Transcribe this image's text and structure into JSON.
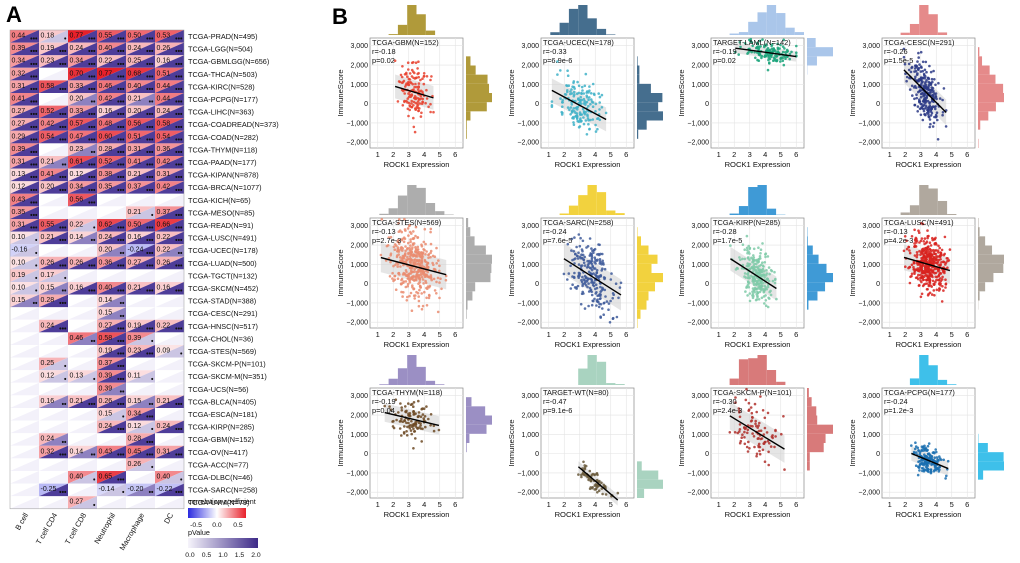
{
  "panel_a": {
    "label": "A",
    "columns": [
      "B cell",
      "T cell CD4",
      "T cell CD8",
      "Neutrophil",
      "Macrophage",
      "DC"
    ],
    "rows": [
      {
        "name": "TCGA-PRAD(N=495)",
        "r": [
          0.44,
          0.18,
          0.77,
          0.55,
          0.5,
          0.53
        ],
        "s": [
          3,
          1,
          3,
          3,
          3,
          3
        ]
      },
      {
        "name": "TCGA-LGG(N=504)",
        "r": [
          0.39,
          0.19,
          0.24,
          0.4,
          0.24,
          0.26
        ],
        "s": [
          3,
          3,
          3,
          3,
          3,
          3
        ]
      },
      {
        "name": "TCGA-GBMLGG(N=656)",
        "r": [
          0.34,
          0.23,
          0.34,
          0.22,
          0.25,
          0.16
        ],
        "s": [
          3,
          3,
          3,
          3,
          3,
          3
        ]
      },
      {
        "name": "TCGA-THCA(N=503)",
        "r": [
          0.32,
          null,
          0.7,
          0.77,
          0.68,
          0.51
        ],
        "s": [
          3,
          0,
          3,
          3,
          3,
          3
        ]
      },
      {
        "name": "TCGA-KIRC(N=528)",
        "r": [
          0.31,
          0.58,
          0.33,
          0.46,
          0.4,
          0.44
        ],
        "s": [
          3,
          3,
          3,
          3,
          3,
          3
        ]
      },
      {
        "name": "TCGA-PCPG(N=177)",
        "r": [
          0.41,
          null,
          0.2,
          0.42,
          0.21,
          0.44
        ],
        "s": [
          3,
          0,
          2,
          3,
          2,
          3
        ]
      },
      {
        "name": "TCGA-LIHC(N=363)",
        "r": [
          0.27,
          0.52,
          0.33,
          0.16,
          0.2,
          0.24
        ],
        "s": [
          3,
          3,
          3,
          3,
          3,
          3
        ]
      },
      {
        "name": "TCGA-COADREAD(N=373)",
        "r": [
          0.27,
          0.42,
          0.57,
          0.48,
          0.56,
          0.58
        ],
        "s": [
          3,
          3,
          3,
          3,
          3,
          3
        ]
      },
      {
        "name": "TCGA-COAD(N=282)",
        "r": [
          0.29,
          0.54,
          0.47,
          0.6,
          0.51,
          0.54
        ],
        "s": [
          3,
          3,
          3,
          3,
          3,
          3
        ]
      },
      {
        "name": "TCGA-THYM(N=118)",
        "r": [
          0.39,
          null,
          0.23,
          0.28,
          0.31,
          0.36
        ],
        "s": [
          3,
          0,
          2,
          3,
          3,
          3
        ]
      },
      {
        "name": "TCGA-PAAD(N=177)",
        "r": [
          0.31,
          0.21,
          0.61,
          0.52,
          0.41,
          0.42
        ],
        "s": [
          3,
          2,
          3,
          3,
          3,
          3
        ]
      },
      {
        "name": "TCGA-KIPAN(N=878)",
        "r": [
          0.13,
          0.41,
          0.12,
          0.38,
          0.21,
          0.31
        ],
        "s": [
          3,
          3,
          3,
          3,
          3,
          3
        ]
      },
      {
        "name": "TCGA-BRCA(N=1077)",
        "r": [
          0.12,
          0.2,
          0.34,
          0.35,
          0.37,
          0.42
        ],
        "s": [
          3,
          3,
          3,
          3,
          3,
          3
        ]
      },
      {
        "name": "TCGA-KICH(N=65)",
        "r": [
          0.43,
          null,
          0.56,
          null,
          null,
          null
        ],
        "s": [
          3,
          0,
          3,
          0,
          0,
          0
        ]
      },
      {
        "name": "TCGA-MESO(N=85)",
        "r": [
          0.35,
          null,
          null,
          null,
          0.21,
          0.37
        ],
        "s": [
          3,
          0,
          0,
          0,
          1,
          3
        ]
      },
      {
        "name": "TCGA-READ(N=91)",
        "r": [
          0.31,
          0.55,
          0.22,
          0.62,
          0.5,
          0.66
        ],
        "s": [
          3,
          3,
          1,
          3,
          3,
          3
        ]
      },
      {
        "name": "TCGA-LUSC(N=491)",
        "r": [
          0.1,
          0.21,
          0.14,
          0.24,
          0.16,
          0.22
        ],
        "s": [
          1,
          3,
          2,
          3,
          3,
          3
        ]
      },
      {
        "name": "TCGA-UCEC(N=178)",
        "r": [
          -0.16,
          null,
          null,
          0.2,
          -0.24,
          0.22
        ],
        "s": [
          1,
          0,
          0,
          2,
          3,
          2
        ]
      },
      {
        "name": "TCGA-LUAD(N=500)",
        "r": [
          0.1,
          0.26,
          0.26,
          0.36,
          0.27,
          0.26
        ],
        "s": [
          1,
          3,
          3,
          3,
          3,
          3
        ]
      },
      {
        "name": "TCGA-TGCT(N=132)",
        "r": [
          0.19,
          0.17,
          null,
          null,
          null,
          null
        ],
        "s": [
          1,
          1,
          0,
          0,
          0,
          0
        ]
      },
      {
        "name": "TCGA-SKCM(N=452)",
        "r": [
          0.1,
          0.15,
          0.16,
          0.4,
          0.21,
          0.16
        ],
        "s": [
          1,
          2,
          3,
          3,
          3,
          3
        ]
      },
      {
        "name": "TCGA-STAD(N=388)",
        "r": [
          0.15,
          0.28,
          null,
          0.14,
          null,
          null
        ],
        "s": [
          2,
          3,
          0,
          2,
          0,
          0
        ]
      },
      {
        "name": "TCGA-CESC(N=291)",
        "r": [
          null,
          null,
          null,
          0.15,
          null,
          null
        ],
        "s": [
          0,
          0,
          0,
          2,
          0,
          0
        ]
      },
      {
        "name": "TCGA-HNSC(N=517)",
        "r": [
          null,
          0.24,
          null,
          0.27,
          0.19,
          0.22
        ],
        "s": [
          0,
          3,
          0,
          3,
          3,
          3
        ]
      },
      {
        "name": "TCGA-CHOL(N=36)",
        "r": [
          null,
          null,
          0.46,
          0.58,
          0.39,
          null
        ],
        "s": [
          0,
          0,
          2,
          3,
          1,
          0
        ]
      },
      {
        "name": "TCGA-STES(N=569)",
        "r": [
          null,
          null,
          null,
          0.19,
          0.23,
          0.09
        ],
        "s": [
          0,
          0,
          0,
          3,
          3,
          1
        ]
      },
      {
        "name": "TCGA-SKCM-P(N=101)",
        "r": [
          null,
          0.25,
          null,
          0.37,
          null,
          null
        ],
        "s": [
          0,
          1,
          0,
          3,
          0,
          0
        ]
      },
      {
        "name": "TCGA-SKCM-M(N=351)",
        "r": [
          null,
          0.12,
          0.13,
          0.39,
          0.11,
          null
        ],
        "s": [
          0,
          1,
          1,
          3,
          1,
          0
        ]
      },
      {
        "name": "TCGA-UCS(N=56)",
        "r": [
          null,
          null,
          null,
          0.39,
          null,
          null
        ],
        "s": [
          0,
          0,
          0,
          2,
          0,
          0
        ]
      },
      {
        "name": "TCGA-BLCA(N=405)",
        "r": [
          null,
          0.16,
          0.21,
          0.26,
          0.15,
          0.21
        ],
        "s": [
          0,
          2,
          3,
          3,
          2,
          3
        ]
      },
      {
        "name": "TCGA-ESCA(N=181)",
        "r": [
          null,
          null,
          null,
          0.15,
          0.34,
          null
        ],
        "s": [
          0,
          0,
          0,
          1,
          3,
          0
        ]
      },
      {
        "name": "TCGA-KIRP(N=285)",
        "r": [
          null,
          null,
          null,
          0.24,
          0.12,
          0.24
        ],
        "s": [
          0,
          0,
          0,
          3,
          1,
          3
        ]
      },
      {
        "name": "TCGA-GBM(N=152)",
        "r": [
          null,
          0.24,
          null,
          null,
          0.28,
          null
        ],
        "s": [
          0,
          2,
          0,
          0,
          3,
          0
        ]
      },
      {
        "name": "TCGA-OV(N=417)",
        "r": [
          null,
          0.32,
          0.14,
          0.43,
          0.45,
          0.31
        ],
        "s": [
          0,
          3,
          2,
          3,
          3,
          3
        ]
      },
      {
        "name": "TCGA-ACC(N=77)",
        "r": [
          null,
          null,
          null,
          null,
          0.26,
          null
        ],
        "s": [
          0,
          0,
          0,
          0,
          1,
          0
        ]
      },
      {
        "name": "TCGA-DLBC(N=46)",
        "r": [
          null,
          null,
          0.4,
          0.65,
          null,
          0.4
        ],
        "s": [
          0,
          0,
          1,
          3,
          0,
          1
        ]
      },
      {
        "name": "TCGA-SARC(N=258)",
        "r": [
          null,
          -0.25,
          null,
          -0.14,
          -0.2,
          -0.22
        ],
        "s": [
          0,
          3,
          0,
          1,
          2,
          3
        ]
      },
      {
        "name": "TCGA-UVM(N=79)",
        "r": [
          null,
          null,
          0.27,
          null,
          null,
          null
        ],
        "s": [
          0,
          0,
          1,
          0,
          0,
          0
        ]
      }
    ],
    "legend": {
      "corr_title": "correlation coefficient",
      "corr_ticks": [
        "-0.5",
        "0.0",
        "0.5"
      ],
      "p_title": "pValue",
      "p_ticks": [
        "0.0",
        "0.5",
        "1.0",
        "1.5",
        "2.0"
      ]
    }
  },
  "chart_data": {
    "type": "scatter",
    "panel_label": "B",
    "xlabel": "ROCK1 Expression",
    "ylabel": "ImmuneScore",
    "xlim": [
      0.5,
      6.5
    ],
    "ylim": [
      -2300,
      3400
    ],
    "x_ticks": [
      "1",
      "2",
      "3",
      "4",
      "5",
      "6"
    ],
    "y_ticks": [
      "3,000",
      "2,000",
      "1,000",
      "0",
      "−1,000",
      "−2,000"
    ],
    "y_tick_values": [
      3000,
      2000,
      1000,
      0,
      -1000,
      -2000
    ],
    "series": [
      {
        "name": "TCGA-GBM(N=152)",
        "r": "r=-0.18",
        "p": "p=0.02",
        "color": "#e8412e",
        "marg": "#b09a3a",
        "n": 150,
        "xc": 3.4,
        "xs": 0.55,
        "int": 1400,
        "slope": -240,
        "noise": 650
      },
      {
        "name": "TCGA-UCEC(N=178)",
        "r": "r=-0.33",
        "p": "p=6.9e-6",
        "color": "#3fb2c8",
        "marg": "#456e8e",
        "n": 170,
        "xc": 3.0,
        "xs": 0.65,
        "int": 1200,
        "slope": -430,
        "noise": 650
      },
      {
        "name": "TARGET-LAML(N=142)",
        "r": "r=-0.19",
        "p": "p=0.02",
        "color": "#1aa37a",
        "marg": "#aac6ea",
        "n": 140,
        "xc": 4.3,
        "xs": 0.8,
        "int": 3100,
        "slope": -110,
        "noise": 280
      },
      {
        "name": "TCGA-CESC(N=291)",
        "r": "r=-0.26",
        "p": "p=1.5e-5",
        "color": "#2b3a86",
        "marg": "#e58a8a",
        "n": 260,
        "xc": 3.3,
        "xs": 0.5,
        "int": 3300,
        "slope": -810,
        "noise": 700
      },
      {
        "name": "TCGA-STES(N=569)",
        "r": "r=-0.13",
        "p": "p=2.7e-3",
        "color": "#ea8c70",
        "marg": "#adadad",
        "n": 420,
        "xc": 3.3,
        "xs": 0.75,
        "int": 1600,
        "slope": -210,
        "noise": 800
      },
      {
        "name": "TCGA-SARC(N=258)",
        "r": "r=-0.24",
        "p": "p=7.6e-5",
        "color": "#3e5a9a",
        "marg": "#f2d23e",
        "n": 240,
        "xc": 3.7,
        "xs": 0.65,
        "int": 2300,
        "slope": -510,
        "noise": 850
      },
      {
        "name": "TCGA-KIRP(N=285)",
        "r": "r=-0.28",
        "p": "p=1.7e-5",
        "color": "#7fcaa8",
        "marg": "#3f9ad6",
        "n": 260,
        "xc": 3.5,
        "xs": 0.5,
        "int": 2200,
        "slope": -520,
        "noise": 650
      },
      {
        "name": "TCGA-LUSC(N=491)",
        "r": "r=-0.13",
        "p": "p=4.2e-3",
        "color": "#d8221e",
        "marg": "#b0a89e",
        "n": 430,
        "xc": 3.5,
        "xs": 0.55,
        "int": 1800,
        "slope": -230,
        "noise": 700
      },
      {
        "name": "TCGA-THYM(N=118)",
        "r": "r=-0.19",
        "p": "p=0.04",
        "color": "#6d4a24",
        "marg": "#9b8fc4",
        "n": 110,
        "xc": 3.2,
        "xs": 0.7,
        "int": 2400,
        "slope": -190,
        "noise": 500
      },
      {
        "name": "TARGET-WT(N=80)",
        "r": "r=-0.47",
        "p": "p=9.1e-6",
        "color": "#6a5a3c",
        "marg": "#a9d3c0",
        "n": 75,
        "xc": 3.8,
        "xs": 0.5,
        "int": 1300,
        "slope": -680,
        "noise": 300
      },
      {
        "name": "TCGA-SKCM-P(N=101)",
        "r": "r=-0.30",
        "p": "p=2.4e-3",
        "color": "#b0302c",
        "marg": "#d87a7a",
        "n": 100,
        "xc": 3.4,
        "xs": 0.75,
        "int": 2800,
        "slope": -490,
        "noise": 750
      },
      {
        "name": "TCGA-PCPG(N=177)",
        "r": "r=-0.24",
        "p": "p=1.2e-3",
        "color": "#1a6fb0",
        "marg": "#3ec0ea",
        "n": 170,
        "xc": 3.5,
        "xs": 0.45,
        "int": 800,
        "slope": -330,
        "noise": 400
      }
    ]
  }
}
